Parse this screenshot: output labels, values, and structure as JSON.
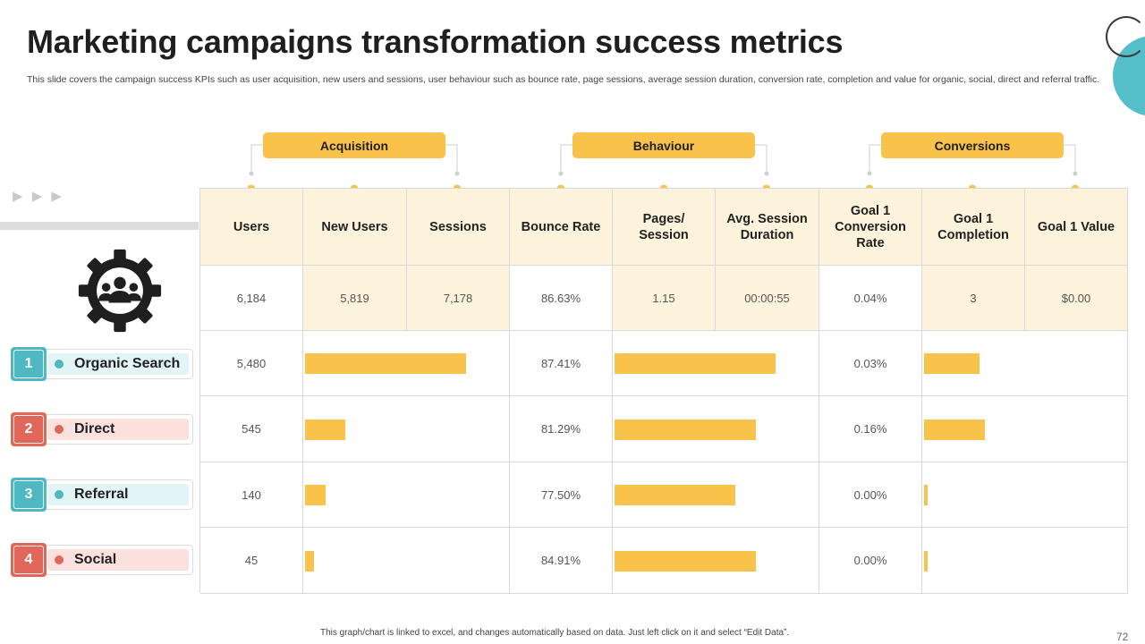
{
  "title": "Marketing campaigns transformation success metrics",
  "subtitle": "This slide covers the campaign success KPIs such as user acquisition, new users and sessions, user behaviour such as bounce rate, page sessions, average session duration, conversion rate, completion and value for organic, social, direct and referral traffic.",
  "arrows": "▶ ▶ ▶",
  "groups": [
    {
      "label": "Acquisition"
    },
    {
      "label": "Behaviour"
    },
    {
      "label": "Conversions"
    }
  ],
  "columns": [
    "Users",
    "New Users",
    "Sessions",
    "Bounce Rate",
    "Pages/\nSession",
    "Avg. Session\nDuration",
    "Goal 1\nConversion\nRate",
    "Goal 1\nCompletion",
    "Goal 1 Value"
  ],
  "totals": [
    "6,184",
    "5,819",
    "7,178",
    "86.63%",
    "1.15",
    "00:00:55",
    "0.04%",
    "3",
    "$0.00"
  ],
  "channels": [
    {
      "num": "1",
      "label": "Organic Search",
      "users": "5,480",
      "bounce": "87.41%",
      "conversion": "0.03%",
      "new_users_bar": 0.88,
      "pages_bar": 0.88,
      "completion_bar": 0.3
    },
    {
      "num": "2",
      "label": "Direct",
      "users": "545",
      "bounce": "81.29%",
      "conversion": "0.16%",
      "new_users_bar": 0.22,
      "pages_bar": 0.77,
      "completion_bar": 0.33
    },
    {
      "num": "3",
      "label": "Referral",
      "users": "140",
      "bounce": "77.50%",
      "conversion": "0.00%",
      "new_users_bar": 0.11,
      "pages_bar": 0.66,
      "completion_bar": 0.02
    },
    {
      "num": "4",
      "label": "Social",
      "users": "45",
      "bounce": "84.91%",
      "conversion": "0.00%",
      "new_users_bar": 0.05,
      "pages_bar": 0.77,
      "completion_bar": 0.02
    }
  ],
  "colors": {
    "accent": "#f9c24a",
    "teal": "#4fb8c3",
    "red": "#e0675a",
    "header_bg": "#fdf3dc"
  },
  "footer": "This graph/chart is linked to excel, and changes automatically based on data. Just left click on it and select “Edit Data”.",
  "page_number": "72"
}
